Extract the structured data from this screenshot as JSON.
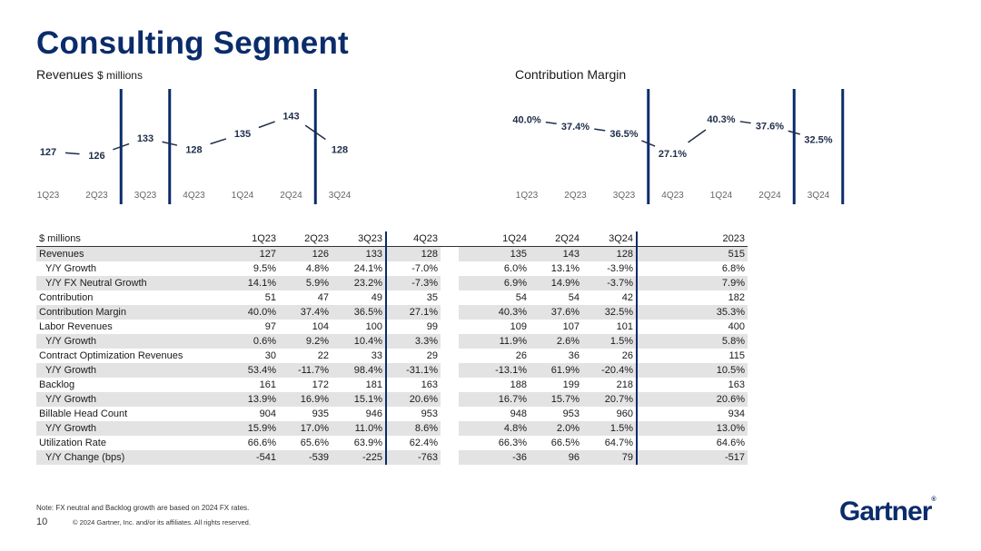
{
  "page": {
    "title": "Consulting Segment",
    "note": "Note: FX neutral and Backlog growth are based on 2024 FX rates.",
    "page_number": "10",
    "copyright": "© 2024 Gartner, Inc. and/or its affiliates. All rights reserved.",
    "logo": "Gartner",
    "logo_reg": "®",
    "colors": {
      "brand": "#0b2c6b",
      "line": "#1f2d4a",
      "shade": "#e3e3e3"
    }
  },
  "chart_data": [
    {
      "type": "line",
      "title": "Revenues",
      "title_unit": "$ millions",
      "categories": [
        "1Q23",
        "2Q23",
        "3Q23",
        "4Q23",
        "1Q24",
        "2Q24",
        "3Q24"
      ],
      "values": [
        127,
        126,
        133,
        128,
        135,
        143,
        128
      ],
      "labels": [
        "127",
        "126",
        "133",
        "128",
        "135",
        "143",
        "128"
      ],
      "ylim": [
        120,
        146
      ]
    },
    {
      "type": "line",
      "title": "Contribution Margin",
      "categories": [
        "1Q23",
        "2Q23",
        "3Q23",
        "4Q23",
        "1Q24",
        "2Q24",
        "3Q24"
      ],
      "values": [
        40.0,
        37.4,
        36.5,
        27.1,
        40.3,
        37.6,
        32.5
      ],
      "labels": [
        "40.0%",
        "37.4%",
        "36.5%",
        "27.1%",
        "40.3%",
        "37.6%",
        "32.5%"
      ],
      "ylim": [
        22,
        44
      ]
    }
  ],
  "table": {
    "headers": [
      "$ millions",
      "1Q23",
      "2Q23",
      "3Q23",
      "4Q23",
      "1Q24",
      "2Q24",
      "3Q24",
      "2023"
    ],
    "rows": [
      {
        "label": "Revenues",
        "indent": false,
        "shade": true,
        "values": [
          "127",
          "126",
          "133",
          "128",
          "135",
          "143",
          "128",
          "515"
        ]
      },
      {
        "label": "Y/Y Growth",
        "indent": true,
        "shade": false,
        "values": [
          "9.5%",
          "4.8%",
          "24.1%",
          "-7.0%",
          "6.0%",
          "13.1%",
          "-3.9%",
          "6.8%"
        ]
      },
      {
        "label": "Y/Y FX Neutral Growth",
        "indent": true,
        "shade": true,
        "values": [
          "14.1%",
          "5.9%",
          "23.2%",
          "-7.3%",
          "6.9%",
          "14.9%",
          "-3.7%",
          "7.9%"
        ]
      },
      {
        "label": "Contribution",
        "indent": false,
        "shade": false,
        "values": [
          "51",
          "47",
          "49",
          "35",
          "54",
          "54",
          "42",
          "182"
        ]
      },
      {
        "label": "Contribution Margin",
        "indent": false,
        "shade": true,
        "values": [
          "40.0%",
          "37.4%",
          "36.5%",
          "27.1%",
          "40.3%",
          "37.6%",
          "32.5%",
          "35.3%"
        ]
      },
      {
        "label": "Labor Revenues",
        "indent": false,
        "shade": false,
        "values": [
          "97",
          "104",
          "100",
          "99",
          "109",
          "107",
          "101",
          "400"
        ]
      },
      {
        "label": "Y/Y Growth",
        "indent": true,
        "shade": true,
        "values": [
          "0.6%",
          "9.2%",
          "10.4%",
          "3.3%",
          "11.9%",
          "2.6%",
          "1.5%",
          "5.8%"
        ]
      },
      {
        "label": "Contract Optimization Revenues",
        "indent": false,
        "shade": false,
        "values": [
          "30",
          "22",
          "33",
          "29",
          "26",
          "36",
          "26",
          "115"
        ]
      },
      {
        "label": "Y/Y Growth",
        "indent": true,
        "shade": true,
        "values": [
          "53.4%",
          "-11.7%",
          "98.4%",
          "-31.1%",
          "-13.1%",
          "61.9%",
          "-20.4%",
          "10.5%"
        ]
      },
      {
        "label": "Backlog",
        "indent": false,
        "shade": false,
        "values": [
          "161",
          "172",
          "181",
          "163",
          "188",
          "199",
          "218",
          "163"
        ]
      },
      {
        "label": "Y/Y Growth",
        "indent": true,
        "shade": true,
        "values": [
          "13.9%",
          "16.9%",
          "15.1%",
          "20.6%",
          "16.7%",
          "15.7%",
          "20.7%",
          "20.6%"
        ]
      },
      {
        "label": "Billable Head Count",
        "indent": false,
        "shade": false,
        "values": [
          "904",
          "935",
          "946",
          "953",
          "948",
          "953",
          "960",
          "934"
        ]
      },
      {
        "label": "Y/Y Growth",
        "indent": true,
        "shade": true,
        "values": [
          "15.9%",
          "17.0%",
          "11.0%",
          "8.6%",
          "4.8%",
          "2.0%",
          "1.5%",
          "13.0%"
        ]
      },
      {
        "label": "Utilization Rate",
        "indent": false,
        "shade": false,
        "values": [
          "66.6%",
          "65.6%",
          "63.9%",
          "62.4%",
          "66.3%",
          "66.5%",
          "64.7%",
          "64.6%"
        ]
      },
      {
        "label": "Y/Y Change (bps)",
        "indent": true,
        "shade": true,
        "values": [
          "-541",
          "-539",
          "-225",
          "-763",
          "-36",
          "96",
          "79",
          "-517"
        ]
      }
    ]
  }
}
